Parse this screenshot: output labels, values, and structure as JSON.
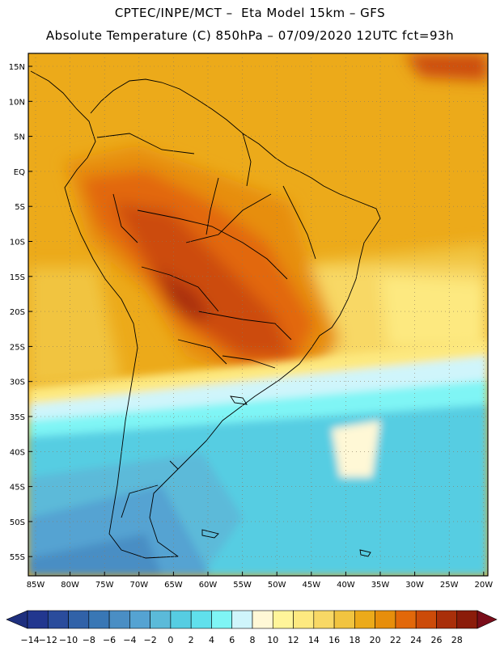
{
  "header": {
    "line1": "CPTEC/INPE/MCT –  Eta Model 15km – GFS",
    "line2": "Absolute Temperature (C) 850hPa – 07/09/2020 12UTC fct=93h"
  },
  "axes": {
    "lat_labels": [
      "15N",
      "10N",
      "5N",
      "EQ",
      "5S",
      "10S",
      "15S",
      "20S",
      "25S",
      "30S",
      "35S",
      "40S",
      "45S",
      "50S",
      "55S"
    ],
    "lon_labels": [
      "85W",
      "80W",
      "75W",
      "70W",
      "65W",
      "60W",
      "55W",
      "50W",
      "45W",
      "40W",
      "35W",
      "30W",
      "25W",
      "20W"
    ]
  },
  "colorbar": {
    "labels": [
      "-14",
      "-12",
      "-10",
      "-8",
      "-6",
      "-4",
      "-2",
      "0",
      "2",
      "4",
      "6",
      "8",
      "10",
      "12",
      "14",
      "16",
      "18",
      "20",
      "22",
      "24",
      "26",
      "28"
    ],
    "colors": [
      "#22378f",
      "#2a4c9c",
      "#3162a8",
      "#3977b5",
      "#4a8ec4",
      "#55a3d2",
      "#5bbad9",
      "#56cde2",
      "#60e0ec",
      "#7ff5f5",
      "#cff5fb",
      "#fff8d6",
      "#fff59a",
      "#fde980",
      "#f8d865",
      "#f1c440",
      "#ecaa1a",
      "#e78e0b",
      "#e2680a",
      "#cc4b09",
      "#a92f0a",
      "#8b1c0a"
    ],
    "low_arrow": "#1e2f7e",
    "high_arrow": "#7a0d1a"
  }
}
